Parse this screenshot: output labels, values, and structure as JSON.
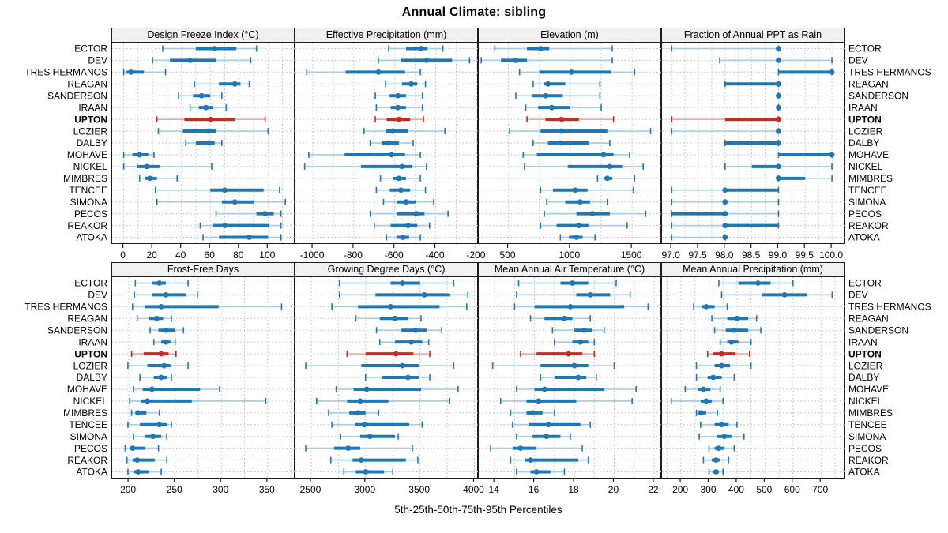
{
  "title": "Annual Climate: sibling",
  "caption": "5th-25th-50th-75th-95th Percentiles",
  "stations": [
    "ECTOR",
    "DEV",
    "TRES HERMANOS",
    "REAGAN",
    "SANDERSON",
    "IRAAN",
    "UPTON",
    "LOZIER",
    "DALBY",
    "MOHAVE",
    "NICKEL",
    "MIMBRES",
    "TENCEE",
    "SIMONA",
    "PECOS",
    "REAKOR",
    "ATOKA"
  ],
  "highlight_station": "UPTON",
  "colors": {
    "series": "#1f78b4",
    "series_light": "#a9cde3",
    "highlight": "#c02f26",
    "highlight_light": "#ebada8",
    "strip_bg": "#f0f0f0",
    "panel_border": "#1c1c1c",
    "grid": "#bdbdbd"
  },
  "chart_data": [
    {
      "type": "dotplot-percentiles",
      "title": "Design Freeze Index (°C)",
      "xlim": [
        -8,
        119
      ],
      "ticks": [
        0,
        20,
        40,
        60,
        80,
        100
      ],
      "grid_step": 10,
      "decimals": 0,
      "values": [
        [
          27,
          50,
          63,
          78,
          92
        ],
        [
          20,
          32,
          46,
          64,
          88
        ],
        [
          0,
          2,
          5,
          14,
          29
        ],
        [
          49,
          66,
          77,
          81,
          87
        ],
        [
          38,
          48,
          54,
          60,
          68
        ],
        [
          46,
          52,
          57,
          62,
          71
        ],
        [
          23,
          42,
          60,
          77,
          98
        ],
        [
          24,
          41,
          59,
          64,
          100
        ],
        [
          43,
          50,
          59,
          63,
          68
        ],
        [
          0,
          6,
          11,
          17,
          21
        ],
        [
          0,
          9,
          16,
          25,
          61
        ],
        [
          11,
          15,
          18,
          23,
          37
        ],
        [
          22,
          60,
          70,
          97,
          108
        ],
        [
          23,
          68,
          77,
          90,
          112
        ],
        [
          64,
          92,
          98,
          104,
          109
        ],
        [
          53,
          62,
          70,
          101,
          109
        ],
        [
          55,
          66,
          87,
          100,
          109
        ]
      ]
    },
    {
      "type": "dotplot-percentiles",
      "title": "Effective Precipitation (mm)",
      "xlim": [
        -1085,
        -190
      ],
      "ticks": [
        -1000,
        -800,
        -600,
        -400,
        -200
      ],
      "grid_step": 100,
      "decimals": 0,
      "values": [
        [
          -630,
          -545,
          -470,
          -440,
          -365
        ],
        [
          -680,
          -570,
          -445,
          -320,
          -235
        ],
        [
          -1030,
          -840,
          -680,
          -550,
          -475
        ],
        [
          -645,
          -565,
          -520,
          -490,
          -450
        ],
        [
          -695,
          -625,
          -585,
          -545,
          -465
        ],
        [
          -690,
          -620,
          -585,
          -545,
          -465
        ],
        [
          -695,
          -640,
          -580,
          -525,
          -460
        ],
        [
          -750,
          -645,
          -610,
          -535,
          -355
        ],
        [
          -720,
          -665,
          -630,
          -580,
          -510
        ],
        [
          -1020,
          -845,
          -615,
          -550,
          -475
        ],
        [
          -1040,
          -765,
          -565,
          -515,
          -445
        ],
        [
          -670,
          -610,
          -580,
          -545,
          -475
        ],
        [
          -690,
          -625,
          -570,
          -525,
          -450
        ],
        [
          -655,
          -590,
          -545,
          -495,
          -410
        ],
        [
          -720,
          -590,
          -495,
          -455,
          -340
        ],
        [
          -700,
          -620,
          -535,
          -490,
          -430
        ],
        [
          -640,
          -590,
          -560,
          -530,
          -475
        ]
      ]
    },
    {
      "type": "dotplot-percentiles",
      "title": "Elevation (m)",
      "xlim": [
        260,
        1742
      ],
      "ticks": [
        500,
        1000,
        1500
      ],
      "grid_step": 250,
      "decimals": 0,
      "values": [
        [
          390,
          650,
          760,
          830,
          1340
        ],
        [
          280,
          440,
          560,
          650,
          1340
        ],
        [
          590,
          750,
          1010,
          1330,
          1520
        ],
        [
          700,
          790,
          820,
          960,
          1240
        ],
        [
          560,
          690,
          800,
          940,
          1240
        ],
        [
          640,
          740,
          850,
          1000,
          1250
        ],
        [
          650,
          800,
          930,
          1070,
          1350
        ],
        [
          510,
          760,
          930,
          1300,
          1650
        ],
        [
          700,
          820,
          920,
          1150,
          1320
        ],
        [
          620,
          730,
          1270,
          1350,
          1480
        ],
        [
          630,
          980,
          1320,
          1420,
          1590
        ],
        [
          1220,
          1270,
          1300,
          1340,
          1520
        ],
        [
          760,
          860,
          1040,
          1140,
          1510
        ],
        [
          810,
          960,
          1080,
          1160,
          1300
        ],
        [
          790,
          1050,
          1180,
          1320,
          1610
        ],
        [
          760,
          890,
          1070,
          1150,
          1460
        ],
        [
          920,
          990,
          1050,
          1100,
          1200
        ]
      ]
    },
    {
      "type": "dotplot-percentiles",
      "title": "Fraction of Annual PPT as Rain",
      "xlim": [
        96.82,
        100.25
      ],
      "ticks": [
        97.0,
        97.5,
        98.0,
        98.5,
        99.0,
        99.5,
        100.0
      ],
      "grid_step": 0.25,
      "decimals": 1,
      "values": [
        [
          97,
          99,
          99,
          99,
          99
        ],
        [
          97.9,
          99,
          99,
          99,
          100
        ],
        [
          99,
          99,
          100,
          100,
          100
        ],
        [
          98,
          98,
          99,
          99,
          99
        ],
        [
          99,
          99,
          99,
          99,
          99
        ],
        [
          99,
          99,
          99,
          99,
          99
        ],
        [
          97,
          98,
          99,
          99,
          99
        ],
        [
          97,
          99,
          99,
          99,
          99
        ],
        [
          98,
          98,
          99,
          99,
          99
        ],
        [
          99,
          99,
          100,
          100,
          100
        ],
        [
          98,
          98.5,
          99,
          99,
          100
        ],
        [
          99,
          99,
          99,
          99.5,
          100
        ],
        [
          97,
          98,
          98,
          99,
          99
        ],
        [
          97,
          98,
          98,
          98,
          99
        ],
        [
          97,
          97,
          98,
          98,
          99
        ],
        [
          97,
          98,
          98,
          99,
          99
        ],
        [
          97,
          98,
          98,
          98,
          98
        ]
      ]
    },
    {
      "type": "dotplot-percentiles",
      "title": "Frost-Free Days",
      "xlim": [
        182,
        380
      ],
      "ticks": [
        200,
        250,
        300,
        350
      ],
      "grid_step": 25,
      "decimals": 0,
      "values": [
        [
          207,
          225,
          233,
          240,
          264
        ],
        [
          206,
          225,
          240,
          262,
          274
        ],
        [
          204,
          217,
          235,
          297,
          365
        ],
        [
          209,
          222,
          230,
          237,
          246
        ],
        [
          223,
          232,
          240,
          250,
          259
        ],
        [
          227,
          235,
          240,
          245,
          250
        ],
        [
          203,
          216,
          235,
          243,
          251
        ],
        [
          199,
          220,
          238,
          245,
          264
        ],
        [
          212,
          227,
          235,
          241,
          246
        ],
        [
          205,
          215,
          225,
          277,
          298
        ],
        [
          201,
          213,
          220,
          268,
          348
        ],
        [
          203,
          207,
          210,
          219,
          233
        ],
        [
          199,
          212,
          233,
          241,
          246
        ],
        [
          205,
          218,
          226,
          235,
          241
        ],
        [
          196,
          201,
          204,
          218,
          232
        ],
        [
          198,
          204,
          209,
          228,
          241
        ],
        [
          199,
          205,
          210,
          222,
          235
        ]
      ]
    },
    {
      "type": "dotplot-percentiles",
      "title": "Growing Degree Days (°C)",
      "xlim": [
        2355,
        4040
      ],
      "ticks": [
        2500,
        3000,
        3500,
        4000
      ],
      "grid_step": 250,
      "decimals": 0,
      "values": [
        [
          2760,
          3230,
          3340,
          3500,
          3810
        ],
        [
          2760,
          3090,
          3540,
          3770,
          3940
        ],
        [
          2690,
          2930,
          3230,
          3680,
          3930
        ],
        [
          2910,
          3130,
          3270,
          3390,
          3510
        ],
        [
          3100,
          3330,
          3460,
          3560,
          3700
        ],
        [
          3130,
          3270,
          3420,
          3520,
          3580
        ],
        [
          2830,
          3000,
          3280,
          3440,
          3590
        ],
        [
          2450,
          2960,
          3340,
          3490,
          3810
        ],
        [
          3000,
          3150,
          3390,
          3490,
          3590
        ],
        [
          2730,
          2890,
          3010,
          3510,
          3850
        ],
        [
          2550,
          2830,
          2950,
          3210,
          3770
        ],
        [
          2660,
          2850,
          2930,
          3000,
          3120
        ],
        [
          2690,
          2900,
          2990,
          3400,
          3520
        ],
        [
          2770,
          2950,
          3040,
          3270,
          3300
        ],
        [
          2450,
          2710,
          2840,
          2950,
          3430
        ],
        [
          2680,
          2880,
          2960,
          3370,
          3480
        ],
        [
          2800,
          2910,
          3000,
          3170,
          3250
        ]
      ]
    },
    {
      "type": "dotplot-percentiles",
      "title": "Mean Annual Air Temperature (°C)",
      "xlim": [
        13.2,
        22.4
      ],
      "ticks": [
        14,
        16,
        18,
        20,
        22
      ],
      "grid_step": 1,
      "decimals": 0,
      "values": [
        [
          15.2,
          17.3,
          17.9,
          18.7,
          20.1
        ],
        [
          15.1,
          18.1,
          18.8,
          19.8,
          20.8
        ],
        [
          15.0,
          16.0,
          17.8,
          20.5,
          21.7
        ],
        [
          15.8,
          16.5,
          17.5,
          17.9,
          18.8
        ],
        [
          16.9,
          18.0,
          18.5,
          18.9,
          19.5
        ],
        [
          17.0,
          17.9,
          18.3,
          18.7,
          19.0
        ],
        [
          15.3,
          16.1,
          17.7,
          18.4,
          19.0
        ],
        [
          13.9,
          16.3,
          18.0,
          18.7,
          20.0
        ],
        [
          16.3,
          17.0,
          18.2,
          18.6,
          19.1
        ],
        [
          15.1,
          16.0,
          16.5,
          19.5,
          21.1
        ],
        [
          14.3,
          15.6,
          16.2,
          18.1,
          20.9
        ],
        [
          14.8,
          15.6,
          15.9,
          16.4,
          17.0
        ],
        [
          14.9,
          15.7,
          16.7,
          18.3,
          18.8
        ],
        [
          15.1,
          15.9,
          16.6,
          17.3,
          17.8
        ],
        [
          13.8,
          14.9,
          15.3,
          16.1,
          18.4
        ],
        [
          14.8,
          15.5,
          15.8,
          18.2,
          18.7
        ],
        [
          15.1,
          15.8,
          16.1,
          16.8,
          17.5
        ]
      ]
    },
    {
      "type": "dotplot-percentiles",
      "title": "Mean Annual Precipitation (mm)",
      "xlim": [
        132,
        787
      ],
      "ticks": [
        200,
        300,
        400,
        500,
        600,
        700
      ],
      "grid_step": 50,
      "decimals": 0,
      "values": [
        [
          335,
          405,
          475,
          520,
          600
        ],
        [
          345,
          490,
          570,
          650,
          740
        ],
        [
          245,
          275,
          290,
          320,
          365
        ],
        [
          310,
          365,
          400,
          440,
          470
        ],
        [
          320,
          360,
          390,
          440,
          485
        ],
        [
          340,
          365,
          380,
          405,
          450
        ],
        [
          295,
          315,
          345,
          395,
          445
        ],
        [
          255,
          320,
          345,
          375,
          450
        ],
        [
          255,
          295,
          315,
          345,
          390
        ],
        [
          215,
          260,
          280,
          305,
          340
        ],
        [
          165,
          270,
          290,
          310,
          350
        ],
        [
          255,
          265,
          270,
          290,
          330
        ],
        [
          270,
          320,
          345,
          370,
          400
        ],
        [
          265,
          330,
          355,
          380,
          425
        ],
        [
          300,
          320,
          335,
          355,
          390
        ],
        [
          280,
          310,
          325,
          340,
          370
        ],
        [
          300,
          315,
          325,
          335,
          350
        ]
      ]
    }
  ]
}
